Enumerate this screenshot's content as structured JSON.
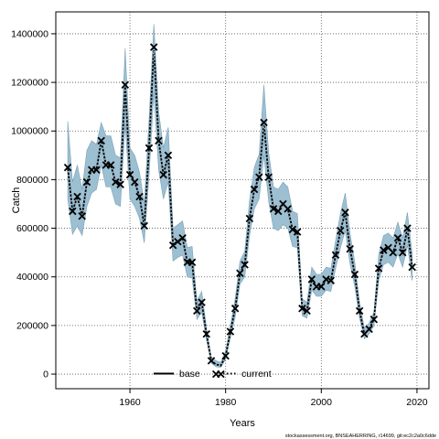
{
  "chart_data": {
    "type": "line",
    "xlabel": "Years",
    "ylabel": "Catch",
    "xlim": [
      1944.5,
      2022.5
    ],
    "ylim": [
      -60000,
      1490000
    ],
    "x_ticks": [
      1960,
      1980,
      2000,
      2020
    ],
    "x_tick_labels": [
      "1960",
      "1980",
      "2000",
      "2020"
    ],
    "y_ticks": [
      0,
      200000,
      400000,
      600000,
      800000,
      1000000,
      1200000,
      1400000
    ],
    "y_tick_labels": [
      "0",
      "200000",
      "400000",
      "600000",
      "800000",
      "1000000",
      "1200000",
      "1400000"
    ],
    "grid": true,
    "band_color": "#9dbfd2",
    "band_edge_color": "#7aa2b8",
    "legend": {
      "position": "bottom-center",
      "entries": [
        {
          "label": "base",
          "style": "solid",
          "color": "#000000"
        },
        {
          "label": "current",
          "style": "dotted",
          "color": "#000000"
        }
      ]
    },
    "observed": {
      "marker": "x",
      "x": [
        1947,
        1948,
        1949,
        1950,
        1951,
        1952,
        1953,
        1954,
        1955,
        1956,
        1957,
        1958,
        1959,
        1960,
        1961,
        1962,
        1963,
        1964,
        1965,
        1966,
        1967,
        1968,
        1969,
        1970,
        1971,
        1972,
        1973,
        1974,
        1975,
        1976,
        1977,
        1978,
        1979,
        1980,
        1981,
        1982,
        1983,
        1984,
        1985,
        1986,
        1987,
        1988,
        1989,
        1990,
        1991,
        1992,
        1993,
        1994,
        1995,
        1996,
        1997,
        1998,
        1999,
        2000,
        2001,
        2002,
        2003,
        2004,
        2005,
        2006,
        2007,
        2008,
        2009,
        2010,
        2011,
        2012,
        2013,
        2014,
        2015,
        2016,
        2017,
        2018,
        2019
      ],
      "y": [
        850000,
        670000,
        730000,
        650000,
        790000,
        840000,
        840000,
        960000,
        860000,
        860000,
        790000,
        780000,
        1190000,
        820000,
        790000,
        730000,
        610000,
        930000,
        1345000,
        960000,
        820000,
        900000,
        530000,
        545000,
        560000,
        460000,
        460000,
        260000,
        295000,
        165000,
        55000,
        0,
        0,
        75000,
        175000,
        270000,
        415000,
        450000,
        640000,
        760000,
        810000,
        1035000,
        810000,
        680000,
        670000,
        700000,
        680000,
        595000,
        585000,
        270000,
        260000,
        390000,
        360000,
        360000,
        390000,
        385000,
        490000,
        590000,
        665000,
        515000,
        410000,
        260000,
        165000,
        185000,
        225000,
        435000,
        510000,
        520000,
        500000,
        560000,
        500000,
        600000,
        440000
      ]
    },
    "series": [
      {
        "name": "current",
        "x": [
          1947,
          1948,
          1949,
          1950,
          1951,
          1952,
          1953,
          1954,
          1955,
          1956,
          1957,
          1958,
          1959,
          1960,
          1961,
          1962,
          1963,
          1964,
          1965,
          1966,
          1967,
          1968,
          1969,
          1970,
          1971,
          1972,
          1973,
          1974,
          1975,
          1976,
          1977,
          1978,
          1979,
          1980,
          1981,
          1982,
          1983,
          1984,
          1985,
          1986,
          1987,
          1988,
          1989,
          1990,
          1991,
          1992,
          1993,
          1994,
          1995,
          1996,
          1997,
          1998,
          1999,
          2000,
          2001,
          2002,
          2003,
          2004,
          2005,
          2006,
          2007,
          2008,
          2009,
          2010,
          2011,
          2012,
          2013,
          2014,
          2015,
          2016,
          2017,
          2018,
          2019
        ],
        "y": [
          850000,
          670000,
          730000,
          650000,
          790000,
          840000,
          840000,
          960000,
          860000,
          860000,
          790000,
          780000,
          1190000,
          820000,
          790000,
          730000,
          610000,
          930000,
          1345000,
          960000,
          820000,
          900000,
          530000,
          545000,
          560000,
          460000,
          460000,
          260000,
          295000,
          165000,
          55000,
          40000,
          35000,
          75000,
          175000,
          270000,
          415000,
          450000,
          640000,
          760000,
          810000,
          1035000,
          810000,
          680000,
          670000,
          700000,
          680000,
          595000,
          585000,
          270000,
          260000,
          390000,
          360000,
          360000,
          390000,
          385000,
          490000,
          590000,
          665000,
          515000,
          410000,
          260000,
          165000,
          185000,
          225000,
          435000,
          510000,
          520000,
          500000,
          560000,
          500000,
          600000,
          440000
        ],
        "lower": [
          720000,
          575000,
          610000,
          570000,
          690000,
          745000,
          760000,
          860000,
          770000,
          770000,
          700000,
          690000,
          1030000,
          720000,
          690000,
          640000,
          540000,
          820000,
          1160000,
          840000,
          720000,
          790000,
          465000,
          480000,
          490000,
          400000,
          395000,
          225000,
          255000,
          140000,
          45000,
          30000,
          28000,
          60000,
          150000,
          235000,
          370000,
          400000,
          570000,
          680000,
          720000,
          900000,
          710000,
          600000,
          590000,
          615000,
          600000,
          525000,
          520000,
          240000,
          230000,
          345000,
          320000,
          320000,
          345000,
          340000,
          435000,
          520000,
          590000,
          455000,
          360000,
          230000,
          145000,
          165000,
          200000,
          385000,
          450000,
          460000,
          440000,
          495000,
          440000,
          530000,
          385000
        ],
        "upper": [
          1040000,
          790000,
          860000,
          760000,
          920000,
          960000,
          945000,
          1035000,
          980000,
          980000,
          900000,
          890000,
          1340000,
          930000,
          900000,
          830000,
          700000,
          1050000,
          1440000,
          1080000,
          930000,
          1015000,
          600000,
          615000,
          630000,
          520000,
          525000,
          300000,
          340000,
          190000,
          70000,
          55000,
          48000,
          95000,
          200000,
          310000,
          465000,
          505000,
          715000,
          850000,
          905000,
          1190000,
          910000,
          770000,
          760000,
          790000,
          770000,
          670000,
          660000,
          310000,
          295000,
          440000,
          410000,
          410000,
          440000,
          435000,
          550000,
          660000,
          745000,
          580000,
          460000,
          295000,
          190000,
          210000,
          255000,
          490000,
          570000,
          580000,
          560000,
          625000,
          560000,
          665000,
          495000
        ]
      }
    ]
  },
  "footer": "stockassessment.org, BNSEAHERRING, r14699, git:ec2c2a0c6dde"
}
